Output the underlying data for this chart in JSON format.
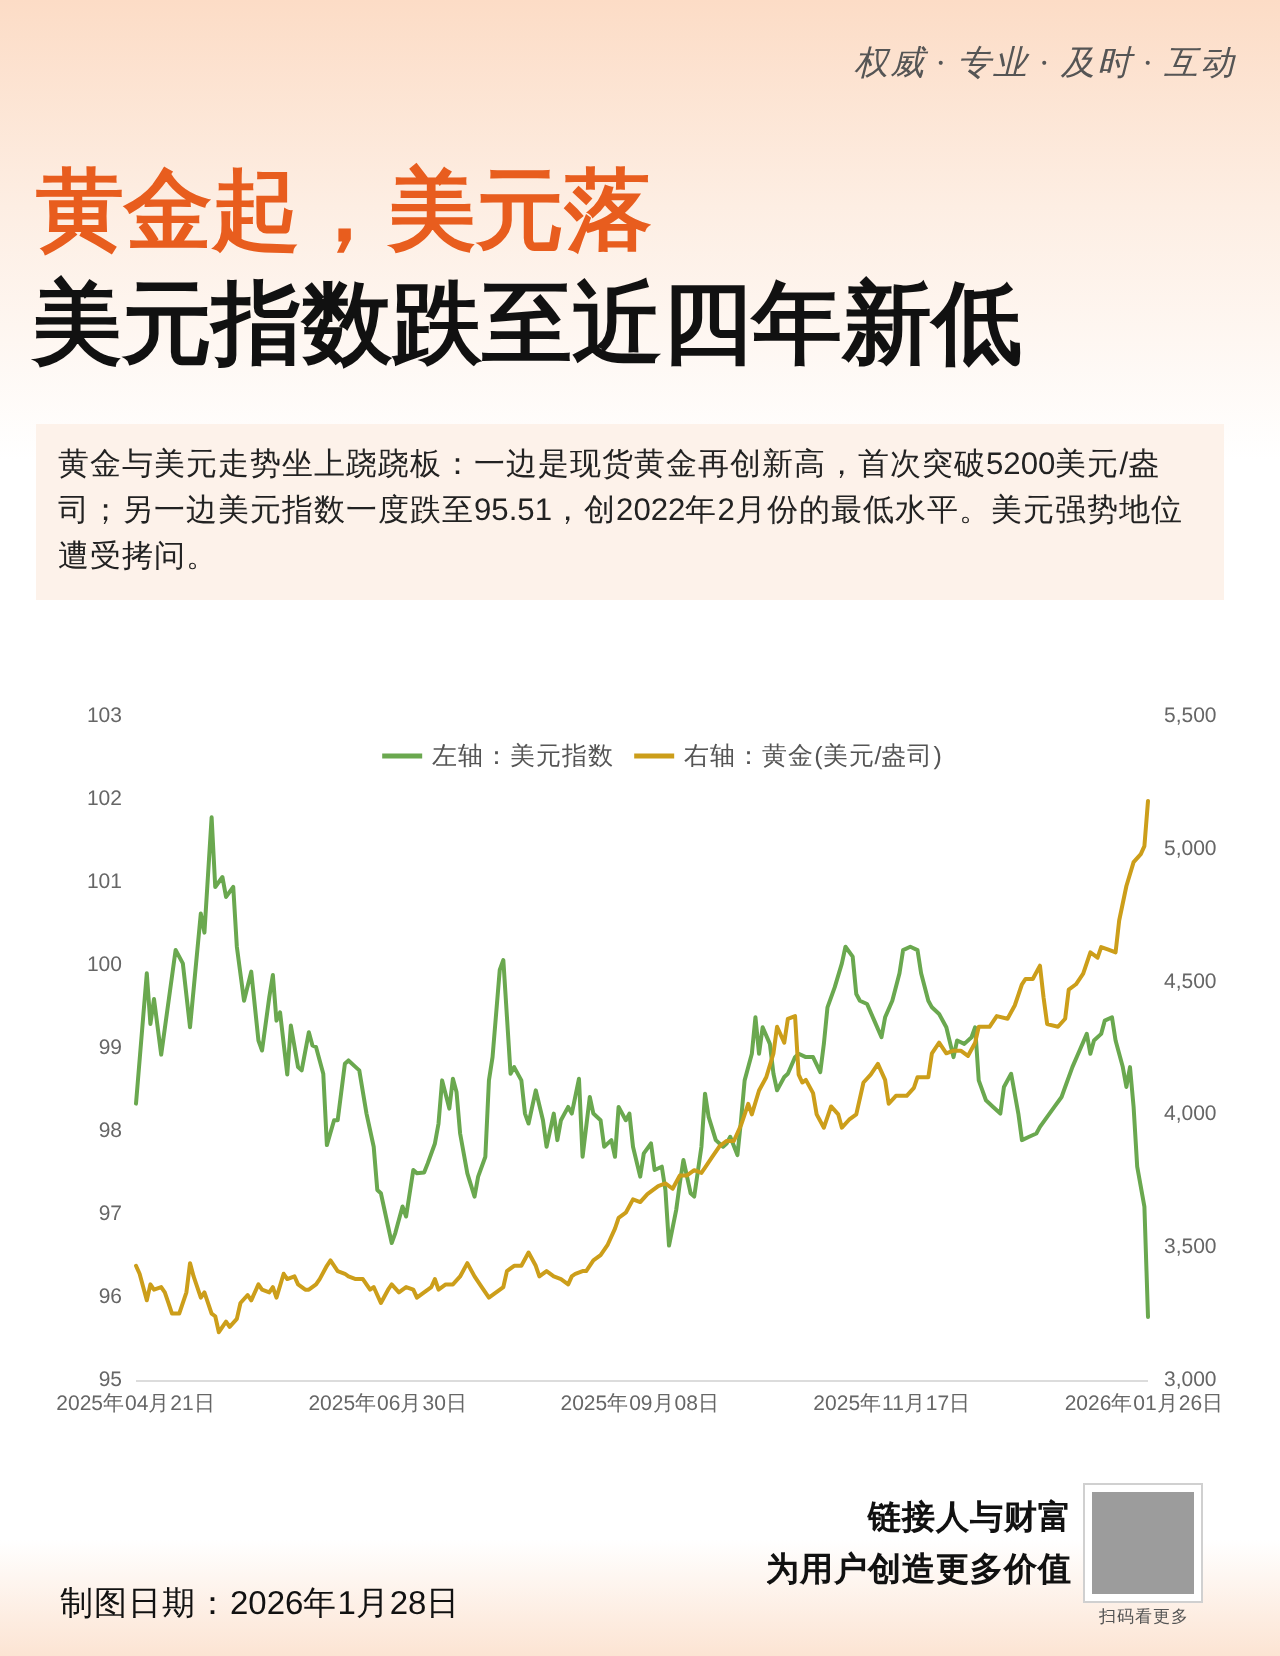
{
  "chart_data": {
    "type": "line",
    "title": "黄金起，美元落",
    "subtitle": "美元指数跌至近四年新低",
    "annotations": [
      "权威 · 专业 · 及时 · 互动",
      "黄金与美元走势坐上跷跷板：一边是现货黄金再创新高，首次突破5200美元/盎司；另一边美元指数一度跌至95.51，创2022年2月份的最低水平。美元强势地位遭受拷问。",
      "制图日期：2026年1月28日",
      "链接人与财富",
      "为用户创造更多价值",
      "扫码看更多"
    ],
    "legend": "top",
    "xlim": [
      "2025-04-21",
      "2026-01-27"
    ],
    "xticks": [
      {
        "value": "2025-04-21",
        "label": "2025年04月21日"
      },
      {
        "value": "2025-06-30",
        "label": "2025年06月30日"
      },
      {
        "value": "2025-09-08",
        "label": "2025年09月08日"
      },
      {
        "value": "2025-11-17",
        "label": "2025年11月17日"
      },
      {
        "value": "2026-01-26",
        "label": "2026年01月26日"
      }
    ],
    "ylim": [
      95,
      103
    ],
    "yticks": [
      95,
      96,
      97,
      98,
      99,
      100,
      101,
      102,
      103
    ],
    "y2lim": [
      3000,
      5500
    ],
    "y2ticks": [
      {
        "value": 3000,
        "label": "3,000"
      },
      {
        "value": 3500,
        "label": "3,500"
      },
      {
        "value": 4000,
        "label": "4,000"
      },
      {
        "value": 4500,
        "label": "4,500"
      },
      {
        "value": 5000,
        "label": "5,000"
      },
      {
        "value": 5500,
        "label": "5,500"
      }
    ],
    "series": [
      {
        "name": "左轴：美元指数",
        "color": "#6aa84f",
        "x": [
          "2025-04-21",
          "2025-04-24",
          "2025-04-25",
          "2025-04-26",
          "2025-04-28",
          "2025-05-02",
          "2025-05-04",
          "2025-05-06",
          "2025-05-09",
          "2025-05-10",
          "2025-05-12",
          "2025-05-13",
          "2025-05-15",
          "2025-05-16",
          "2025-05-18",
          "2025-05-19",
          "2025-05-21",
          "2025-05-23",
          "2025-05-25",
          "2025-05-26",
          "2025-05-28",
          "2025-05-29",
          "2025-05-30",
          "2025-05-31",
          "2025-06-02",
          "2025-06-03",
          "2025-06-05",
          "2025-06-06",
          "2025-06-08",
          "2025-06-09",
          "2025-06-10",
          "2025-06-12",
          "2025-06-13",
          "2025-06-15",
          "2025-06-16",
          "2025-06-18",
          "2025-06-19",
          "2025-06-21",
          "2025-06-22",
          "2025-06-24",
          "2025-06-26",
          "2025-06-27",
          "2025-06-28",
          "2025-06-30",
          "2025-07-01",
          "2025-07-02",
          "2025-07-04",
          "2025-07-05",
          "2025-07-07",
          "2025-07-08",
          "2025-07-10",
          "2025-07-11",
          "2025-07-13",
          "2025-07-14",
          "2025-07-15",
          "2025-07-17",
          "2025-07-18",
          "2025-07-19",
          "2025-07-20",
          "2025-07-22",
          "2025-07-24",
          "2025-07-25",
          "2025-07-27",
          "2025-07-28",
          "2025-07-29",
          "2025-07-31",
          "2025-08-01",
          "2025-08-03",
          "2025-08-04",
          "2025-08-06",
          "2025-08-07",
          "2025-08-08",
          "2025-08-10",
          "2025-08-12",
          "2025-08-13",
          "2025-08-15",
          "2025-08-16",
          "2025-08-17",
          "2025-08-19",
          "2025-08-20",
          "2025-08-22",
          "2025-08-23",
          "2025-08-25",
          "2025-08-26",
          "2025-08-28",
          "2025-08-29",
          "2025-08-31",
          "2025-09-01",
          "2025-09-02",
          "2025-09-04",
          "2025-09-05",
          "2025-09-06",
          "2025-09-08",
          "2025-09-09",
          "2025-09-11",
          "2025-09-12",
          "2025-09-14",
          "2025-09-15",
          "2025-09-16",
          "2025-09-18",
          "2025-09-19",
          "2025-09-20",
          "2025-09-22",
          "2025-09-23",
          "2025-09-25",
          "2025-09-26",
          "2025-09-27",
          "2025-09-29",
          "2025-10-01",
          "2025-10-02",
          "2025-10-03",
          "2025-10-05",
          "2025-10-06",
          "2025-10-07",
          "2025-10-09",
          "2025-10-10",
          "2025-10-11",
          "2025-10-12",
          "2025-10-14",
          "2025-10-15",
          "2025-10-16",
          "2025-10-18",
          "2025-10-19",
          "2025-10-21",
          "2025-10-22",
          "2025-10-24",
          "2025-10-26",
          "2025-10-28",
          "2025-10-29",
          "2025-10-30",
          "2025-11-01",
          "2025-11-03",
          "2025-11-04",
          "2025-11-06",
          "2025-11-07",
          "2025-11-08",
          "2025-11-10",
          "2025-11-12",
          "2025-11-14",
          "2025-11-15",
          "2025-11-17",
          "2025-11-19",
          "2025-11-20",
          "2025-11-22",
          "2025-11-24",
          "2025-11-25",
          "2025-11-27",
          "2025-11-28",
          "2025-11-30",
          "2025-12-02",
          "2025-12-04",
          "2025-12-05",
          "2025-12-07",
          "2025-12-09",
          "2025-12-10",
          "2025-12-11",
          "2025-12-13",
          "2025-12-15",
          "2025-12-17",
          "2025-12-18",
          "2025-12-20",
          "2025-12-22",
          "2025-12-23",
          "2025-12-25",
          "2025-12-27",
          "2025-12-28",
          "2025-12-30",
          "2026-01-01",
          "2026-01-03",
          "2026-01-04",
          "2026-01-06",
          "2026-01-08",
          "2026-01-10",
          "2026-01-11",
          "2026-01-12",
          "2026-01-14",
          "2026-01-15",
          "2026-01-17",
          "2026-01-18",
          "2026-01-20",
          "2026-01-21",
          "2026-01-22",
          "2026-01-23",
          "2026-01-24",
          "2026-01-26",
          "2026-01-27"
        ],
        "values": [
          98.33,
          99.9,
          99.29,
          99.59,
          98.92,
          100.18,
          100.02,
          99.25,
          100.62,
          100.39,
          101.78,
          100.94,
          101.06,
          100.82,
          100.94,
          100.22,
          99.57,
          99.92,
          99.09,
          98.97,
          99.61,
          99.88,
          99.33,
          99.43,
          98.68,
          99.27,
          98.77,
          98.73,
          99.19,
          99.03,
          99.01,
          98.69,
          97.83,
          98.13,
          98.13,
          98.81,
          98.85,
          98.77,
          98.73,
          98.21,
          97.81,
          97.29,
          97.25,
          96.85,
          96.65,
          96.77,
          97.09,
          96.97,
          97.53,
          97.49,
          97.5,
          97.61,
          97.85,
          98.09,
          98.61,
          98.27,
          98.63,
          98.47,
          97.97,
          97.49,
          97.21,
          97.45,
          97.69,
          98.61,
          98.89,
          99.94,
          100.06,
          98.69,
          98.77,
          98.61,
          98.21,
          98.09,
          98.49,
          98.13,
          97.81,
          98.21,
          97.89,
          98.13,
          98.29,
          98.21,
          98.63,
          97.69,
          98.41,
          98.21,
          98.13,
          97.81,
          97.89,
          97.69,
          98.29,
          98.13,
          98.21,
          97.81,
          97.45,
          97.73,
          97.85,
          97.53,
          97.57,
          97.29,
          96.62,
          97.05,
          97.37,
          97.65,
          97.25,
          97.21,
          97.81,
          98.45,
          98.17,
          97.89,
          97.81,
          97.85,
          97.93,
          97.71,
          98.13,
          98.61,
          98.93,
          99.37,
          98.93,
          99.25,
          99.05,
          98.69,
          98.49,
          98.65,
          98.69,
          98.89,
          98.93,
          98.89,
          98.89,
          98.71,
          99.05,
          99.49,
          99.73,
          100.02,
          100.22,
          100.1,
          99.65,
          99.57,
          99.53,
          99.33,
          99.13,
          99.37,
          99.57,
          99.9,
          100.18,
          100.22,
          100.18,
          99.9,
          99.57,
          99.49,
          99.41,
          99.25,
          98.89,
          99.09,
          99.05,
          99.13,
          99.25,
          98.61,
          98.37,
          98.29,
          98.21,
          98.53,
          98.69,
          98.21,
          97.89,
          97.93,
          97.97,
          98.05,
          98.17,
          98.29,
          98.41,
          98.53,
          98.77,
          98.97,
          99.17,
          98.93,
          99.09,
          99.17,
          99.33,
          99.37,
          99.09,
          98.77,
          98.53,
          98.77,
          98.29,
          97.57,
          97.09,
          95.76
        ]
      },
      {
        "name": "右轴：黄金(美元/盎司)",
        "color": "#cc9e1a",
        "axis": "y2",
        "x": [
          "2025-04-21",
          "2025-04-22",
          "2025-04-24",
          "2025-04-25",
          "2025-04-26",
          "2025-04-28",
          "2025-04-29",
          "2025-04-30",
          "2025-05-01",
          "2025-05-03",
          "2025-05-05",
          "2025-05-06",
          "2025-05-07",
          "2025-05-09",
          "2025-05-10",
          "2025-05-12",
          "2025-05-13",
          "2025-05-14",
          "2025-05-16",
          "2025-05-17",
          "2025-05-19",
          "2025-05-20",
          "2025-05-22",
          "2025-05-23",
          "2025-05-25",
          "2025-05-26",
          "2025-05-28",
          "2025-05-29",
          "2025-05-30",
          "2025-06-01",
          "2025-06-02",
          "2025-06-04",
          "2025-06-05",
          "2025-06-07",
          "2025-06-08",
          "2025-06-10",
          "2025-06-11",
          "2025-06-13",
          "2025-06-14",
          "2025-06-16",
          "2025-06-18",
          "2025-06-19",
          "2025-06-21",
          "2025-06-23",
          "2025-06-25",
          "2025-06-26",
          "2025-06-28",
          "2025-06-30",
          "2025-07-01",
          "2025-07-03",
          "2025-07-05",
          "2025-07-07",
          "2025-07-08",
          "2025-07-10",
          "2025-07-12",
          "2025-07-13",
          "2025-07-14",
          "2025-07-16",
          "2025-07-18",
          "2025-07-20",
          "2025-07-22",
          "2025-07-24",
          "2025-07-26",
          "2025-07-28",
          "2025-07-30",
          "2025-08-01",
          "2025-08-02",
          "2025-08-04",
          "2025-08-06",
          "2025-08-08",
          "2025-08-10",
          "2025-08-11",
          "2025-08-13",
          "2025-08-15",
          "2025-08-17",
          "2025-08-19",
          "2025-08-20",
          "2025-08-21",
          "2025-08-23",
          "2025-08-24",
          "2025-08-26",
          "2025-08-28",
          "2025-08-30",
          "2025-09-01",
          "2025-09-02",
          "2025-09-04",
          "2025-09-06",
          "2025-09-08",
          "2025-09-10",
          "2025-09-13",
          "2025-09-15",
          "2025-09-17",
          "2025-09-19",
          "2025-09-21",
          "2025-09-23",
          "2025-09-25",
          "2025-09-26",
          "2025-09-28",
          "2025-09-30",
          "2025-10-02",
          "2025-10-04",
          "2025-10-06",
          "2025-10-08",
          "2025-10-09",
          "2025-10-11",
          "2025-10-13",
          "2025-10-15",
          "2025-10-16",
          "2025-10-18",
          "2025-10-19",
          "2025-10-21",
          "2025-10-22",
          "2025-10-23",
          "2025-10-24",
          "2025-10-26",
          "2025-10-27",
          "2025-10-29",
          "2025-10-31",
          "2025-11-02",
          "2025-11-03",
          "2025-11-05",
          "2025-11-07",
          "2025-11-09",
          "2025-11-11",
          "2025-11-13",
          "2025-11-15",
          "2025-11-16",
          "2025-11-18",
          "2025-11-21",
          "2025-11-23",
          "2025-11-24",
          "2025-11-27",
          "2025-11-28",
          "2025-11-30",
          "2025-12-02",
          "2025-12-04",
          "2025-12-06",
          "2025-12-08",
          "2025-12-10",
          "2025-12-11",
          "2025-12-14",
          "2025-12-16",
          "2025-12-19",
          "2025-12-21",
          "2025-12-23",
          "2025-12-24",
          "2025-12-26",
          "2025-12-28",
          "2025-12-29",
          "2025-12-30",
          "2026-01-02",
          "2026-01-04",
          "2026-01-05",
          "2026-01-07",
          "2026-01-09",
          "2026-01-11",
          "2026-01-13",
          "2026-01-14",
          "2026-01-16",
          "2026-01-18",
          "2026-01-19",
          "2026-01-21",
          "2026-01-23",
          "2026-01-25",
          "2026-01-26",
          "2026-01-27"
        ],
        "values": [
          3430,
          3400,
          3300,
          3360,
          3340,
          3350,
          3330,
          3290,
          3250,
          3250,
          3330,
          3440,
          3390,
          3310,
          3330,
          3250,
          3240,
          3180,
          3220,
          3200,
          3230,
          3290,
          3320,
          3300,
          3360,
          3340,
          3330,
          3350,
          3310,
          3400,
          3380,
          3390,
          3360,
          3340,
          3340,
          3360,
          3380,
          3430,
          3450,
          3410,
          3400,
          3390,
          3380,
          3380,
          3340,
          3350,
          3290,
          3340,
          3360,
          3330,
          3350,
          3340,
          3310,
          3330,
          3350,
          3380,
          3340,
          3360,
          3360,
          3390,
          3440,
          3390,
          3350,
          3310,
          3330,
          3350,
          3410,
          3430,
          3430,
          3480,
          3430,
          3390,
          3410,
          3390,
          3380,
          3360,
          3390,
          3400,
          3410,
          3410,
          3450,
          3470,
          3510,
          3570,
          3610,
          3630,
          3680,
          3670,
          3700,
          3730,
          3740,
          3720,
          3770,
          3770,
          3790,
          3780,
          3800,
          3840,
          3880,
          3900,
          3900,
          3960,
          4040,
          4000,
          4090,
          4140,
          4230,
          4330,
          4270,
          4360,
          4370,
          4150,
          4120,
          4130,
          4080,
          4000,
          3950,
          4030,
          4000,
          3950,
          3980,
          4000,
          4120,
          4150,
          4190,
          4130,
          4040,
          4070,
          4070,
          4100,
          4140,
          4140,
          4230,
          4270,
          4230,
          4240,
          4240,
          4220,
          4270,
          4330,
          4330,
          4370,
          4360,
          4410,
          4490,
          4510,
          4510,
          4560,
          4440,
          4340,
          4330,
          4360,
          4470,
          4490,
          4530,
          4610,
          4590,
          4630,
          4620,
          4610,
          4730,
          4860,
          4950,
          4980,
          5010,
          5180
        ]
      }
    ]
  }
}
